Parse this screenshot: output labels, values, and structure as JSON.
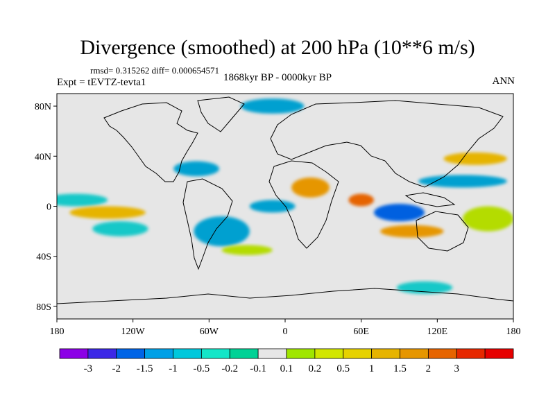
{
  "title": "Divergence (smoothed) at 200 hPa (10**6 m/s)",
  "stats": "rmsd= 0.315262 diff= 0.000654571",
  "experiment": "Expt = tEVTZ-tevta1",
  "period": "1868kyr BP - 0000kyr BP",
  "season": "ANN",
  "map": {
    "projection": "cylindrical-equidistant",
    "lon_range": [
      -180,
      180
    ],
    "lat_range": [
      -90,
      90
    ],
    "background_color": "#e6e6e6",
    "lat_ticks": [
      {
        "value": 80,
        "label": "80N"
      },
      {
        "value": 40,
        "label": "40N"
      },
      {
        "value": 0,
        "label": "0"
      },
      {
        "value": -40,
        "label": "40S"
      },
      {
        "value": -80,
        "label": "80S"
      }
    ],
    "lon_ticks": [
      {
        "value": -180,
        "label": "180"
      },
      {
        "value": -120,
        "label": "120W"
      },
      {
        "value": -60,
        "label": "60W"
      },
      {
        "value": 0,
        "label": "0"
      },
      {
        "value": 60,
        "label": "60E"
      },
      {
        "value": 120,
        "label": "120E"
      },
      {
        "value": 180,
        "label": "180"
      }
    ],
    "features": [
      {
        "name": "neg-band-east-pacific",
        "level": -0.2,
        "lon": -165,
        "lat": 5,
        "rlon": 25,
        "rlat": 5,
        "color": "#14c8c8"
      },
      {
        "name": "neg-band-south-pacific",
        "level": -0.2,
        "lon": -130,
        "lat": -18,
        "rlon": 22,
        "rlat": 6,
        "color": "#14c8c8"
      },
      {
        "name": "neg-blob-south-america",
        "level": -0.5,
        "lon": -50,
        "lat": -20,
        "rlon": 22,
        "rlat": 12,
        "color": "#00a0d0"
      },
      {
        "name": "neg-blob-atlantic-eq",
        "level": -1,
        "lon": -10,
        "lat": 0,
        "rlon": 18,
        "rlat": 5,
        "color": "#00a0d0"
      },
      {
        "name": "neg-core-indian-ocean",
        "level": -1.5,
        "lon": 90,
        "lat": -5,
        "rlon": 20,
        "rlat": 7,
        "color": "#0060e0"
      },
      {
        "name": "neg-band-north-pacific",
        "level": -0.5,
        "lon": 140,
        "lat": 20,
        "rlon": 35,
        "rlat": 5,
        "color": "#00a0d0"
      },
      {
        "name": "neg-arctic",
        "level": -0.5,
        "lon": -10,
        "lat": 80,
        "rlon": 25,
        "rlat": 6,
        "color": "#00a0d0"
      },
      {
        "name": "neg-southern-ocean",
        "level": -0.2,
        "lon": 110,
        "lat": -65,
        "rlon": 22,
        "rlat": 5,
        "color": "#14c8c8"
      },
      {
        "name": "neg-north-atlantic",
        "level": -0.5,
        "lon": -70,
        "lat": 30,
        "rlon": 18,
        "rlat": 6,
        "color": "#00a0d0"
      },
      {
        "name": "pos-band-pacific-itcz",
        "level": 0.5,
        "lon": -140,
        "lat": -5,
        "rlon": 30,
        "rlat": 5,
        "color": "#e6b400"
      },
      {
        "name": "pos-blob-africa",
        "level": 1,
        "lon": 20,
        "lat": 15,
        "rlon": 15,
        "rlat": 8,
        "color": "#e69600"
      },
      {
        "name": "pos-core-arabian-sea",
        "level": 1.5,
        "lon": 60,
        "lat": 5,
        "rlon": 10,
        "rlat": 5,
        "color": "#e66400"
      },
      {
        "name": "pos-band-indian-south",
        "level": 1,
        "lon": 100,
        "lat": -20,
        "rlon": 25,
        "rlat": 5,
        "color": "#e69600"
      },
      {
        "name": "pos-band-north-pacific",
        "level": 0.5,
        "lon": 150,
        "lat": 38,
        "rlon": 25,
        "rlat": 5,
        "color": "#e6b400"
      },
      {
        "name": "pos-blob-west-pacific",
        "level": 0.2,
        "lon": 160,
        "lat": -10,
        "rlon": 20,
        "rlat": 10,
        "color": "#b4dc00"
      },
      {
        "name": "pos-band-south-atlantic",
        "level": 0.2,
        "lon": -30,
        "lat": -35,
        "rlon": 20,
        "rlat": 4,
        "color": "#b4dc00"
      }
    ]
  },
  "colorbar": {
    "colors": [
      "#8c00e6",
      "#3c28e6",
      "#0064e6",
      "#00a0e6",
      "#00c8dc",
      "#14e6c8",
      "#00d296",
      "#e6e6e6",
      "#a0e600",
      "#d2e600",
      "#e6d200",
      "#e6b400",
      "#e69600",
      "#e66400",
      "#e62800",
      "#e60000"
    ],
    "labels": [
      "-3",
      "-2",
      "-1.5",
      "-1",
      "-0.5",
      "-0.2",
      "-0.1",
      "0.1",
      "0.2",
      "0.5",
      "1",
      "1.5",
      "2",
      "3"
    ]
  }
}
